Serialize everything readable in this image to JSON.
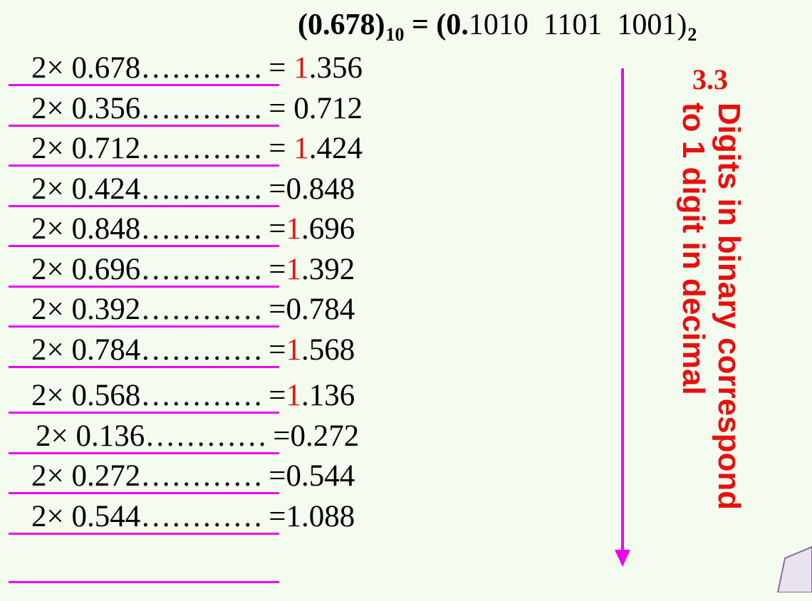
{
  "header": {
    "lhs_number": "(0.678)",
    "lhs_base": "10",
    "equals": " = ",
    "rhs_prefix": "(0.",
    "rhs_digits": "1010  1101  1001)",
    "rhs_base": "2"
  },
  "rows": [
    {
      "mult": "2× 0.678",
      "dots": "…………",
      "eq": "= ",
      "lead": "1",
      "lead_red": true,
      "rest": ".356"
    },
    {
      "mult": "2× 0.356",
      "dots": "…………",
      "eq": "= ",
      "lead": "0",
      "lead_red": false,
      "rest": ".712"
    },
    {
      "mult": "2× 0.712",
      "dots": "…………",
      "eq": "= ",
      "lead": "1",
      "lead_red": true,
      "rest": ".424"
    },
    {
      "mult": "2× 0.424",
      "dots": "…………",
      "eq": "=",
      "lead": "0",
      "lead_red": false,
      "rest": ".848"
    },
    {
      "mult": "2× 0.848",
      "dots": "…………",
      "eq": "=",
      "lead": "1",
      "lead_red": true,
      "rest": ".696"
    },
    {
      "mult": "2× 0.696",
      "dots": "…………",
      "eq": "=",
      "lead": "1",
      "lead_red": true,
      "rest": ".392"
    },
    {
      "mult": "2× 0.392",
      "dots": "…………",
      "eq": "=",
      "lead": "0",
      "lead_red": false,
      "rest": ".784"
    },
    {
      "mult": "2× 0.784",
      "dots": "…………",
      "eq": "=",
      "lead": "1",
      "lead_red": true,
      "rest": ".568"
    },
    {
      "mult": "2× 0.568",
      "dots": "…………",
      "eq": "=",
      "lead": "1",
      "lead_red": true,
      "rest": ".136"
    },
    {
      "mult": "2× 0.136",
      "dots": "…………",
      "eq": "=",
      "lead": "0",
      "lead_red": false,
      "rest": ".272"
    },
    {
      "mult": "2× 0.272",
      "dots": "…………",
      "eq": "=",
      "lead": "0",
      "lead_red": false,
      "rest": ".544"
    },
    {
      "mult": "2× 0.544",
      "dots": "…………",
      "eq": "=",
      "lead": "1",
      "lead_red": false,
      "rest": ".088"
    }
  ],
  "note": {
    "number": "3.3",
    "line1": "Digits in binary correspond",
    "line2": "to 1 digit in decimal"
  },
  "colors": {
    "background": "#f3fcef",
    "accent_red": "#e8100e",
    "magenta": "#f000f0"
  },
  "icons": {
    "arrow": "down-arrow-icon"
  }
}
